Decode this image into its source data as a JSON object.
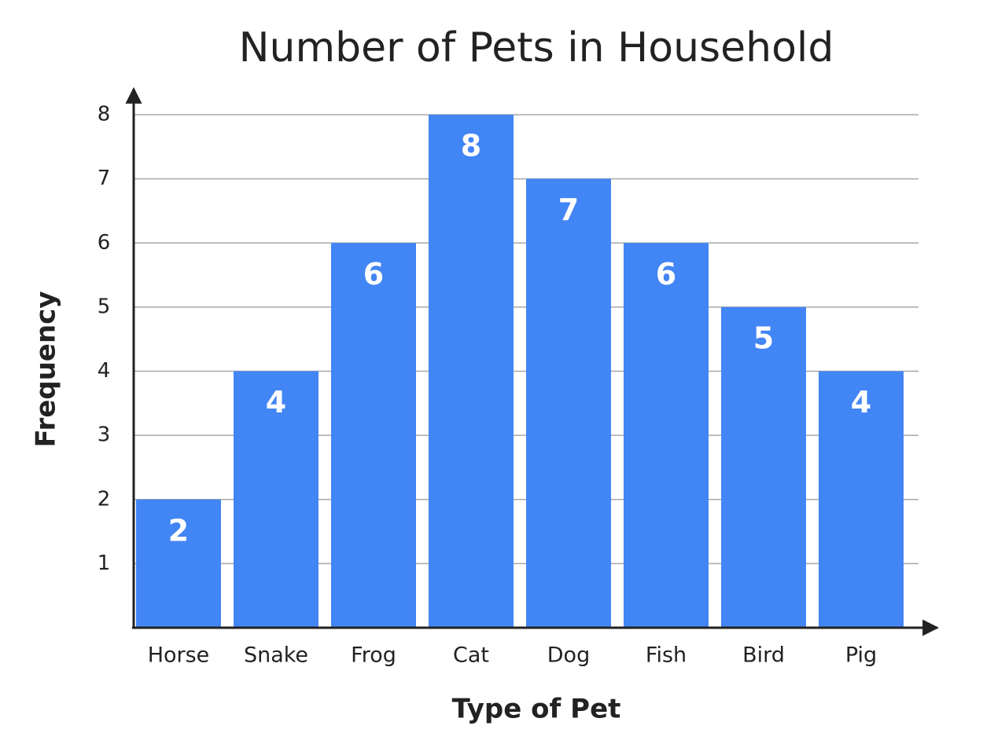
{
  "chart_data": {
    "type": "bar",
    "title": "Number of Pets in Household",
    "x_label": "Type of Pet",
    "y_label": "Frequency",
    "categories": [
      "Horse",
      "Snake",
      "Frog",
      "Cat",
      "Dog",
      "Fish",
      "Bird",
      "Pig"
    ],
    "values": [
      2,
      4,
      6,
      8,
      7,
      6,
      5,
      4
    ],
    "color": "#4285f4",
    "ylim": [
      0,
      8
    ],
    "yticks": [
      1,
      2,
      3,
      4,
      5,
      6,
      7,
      8
    ],
    "grid": true
  }
}
